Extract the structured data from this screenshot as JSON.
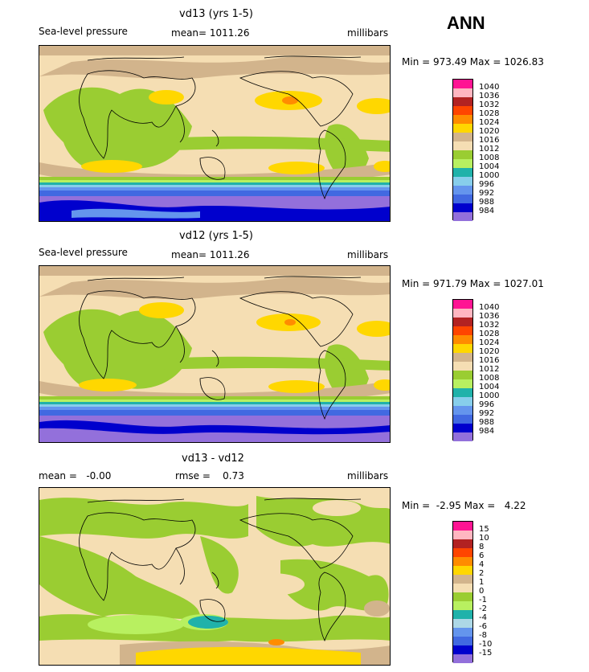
{
  "season": "ANN",
  "panels": [
    {
      "title": "vd13 (yrs 1-5)",
      "variable": "Sea-level pressure",
      "mean": "mean= 1011.26",
      "units": "millibars",
      "minmax": "Min = 973.49 Max = 1026.83",
      "levels": [
        "1040",
        "1036",
        "1032",
        "1028",
        "1024",
        "1020",
        "1016",
        "1012",
        "1008",
        "1004",
        "1000",
        "996",
        "992",
        "988",
        "984"
      ]
    },
    {
      "title": "vd12 (yrs 1-5)",
      "variable": "Sea-level pressure",
      "mean": "mean= 1011.26",
      "units": "millibars",
      "minmax": "Min = 971.79 Max = 1027.01",
      "levels": [
        "1040",
        "1036",
        "1032",
        "1028",
        "1024",
        "1020",
        "1016",
        "1012",
        "1008",
        "1004",
        "1000",
        "996",
        "992",
        "988",
        "984"
      ]
    },
    {
      "title": "vd13 - vd12",
      "mean": "mean =   -0.00",
      "rmse": "rmse =    0.73",
      "units": "millibars",
      "minmax": "Min =  -2.95 Max =   4.22",
      "levels": [
        "15",
        "10",
        "8",
        "6",
        "4",
        "2",
        "1",
        "0",
        "-1",
        "-2",
        "-4",
        "-6",
        "-8",
        "-10",
        "-15"
      ]
    }
  ],
  "colors": {
    "abs_scale": [
      "#ff1493",
      "#ffb6c1",
      "#b22222",
      "#ff4500",
      "#ff8c00",
      "#ffd700",
      "#d2b48c",
      "#f5deb3",
      "#9acd32",
      "#b8f060",
      "#20b2aa",
      "#87ceeb",
      "#6495ed",
      "#4169e1",
      "#0000cd",
      "#9370db"
    ],
    "diff_scale": [
      "#ff1493",
      "#ffb6c1",
      "#b22222",
      "#ff4500",
      "#ff8c00",
      "#ffd700",
      "#d2b48c",
      "#f5deb3",
      "#9acd32",
      "#b8f060",
      "#20b2aa",
      "#add8e6",
      "#6495ed",
      "#4169e1",
      "#0000cd",
      "#9370db"
    ]
  }
}
